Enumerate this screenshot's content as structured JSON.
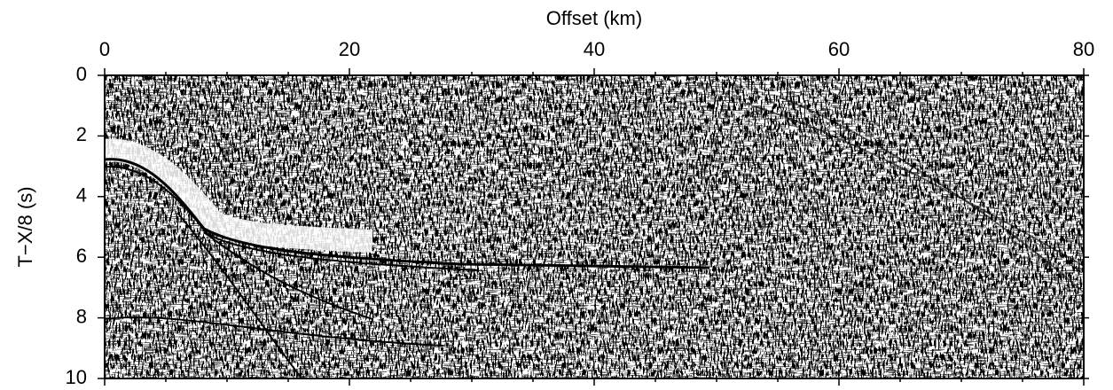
{
  "chart_data": {
    "type": "seismic",
    "x_label": "Offset (km)",
    "y_label": "T−X/8 (s)",
    "xlim": [
      0,
      80
    ],
    "xticks": [
      0,
      20,
      40,
      60,
      80
    ],
    "xminorticks": [
      5,
      10,
      15,
      25,
      30,
      35,
      45,
      50,
      55,
      65,
      70,
      75
    ],
    "ylim": [
      0,
      10
    ],
    "yticks": [
      0,
      2,
      4,
      6,
      8,
      10
    ],
    "y_inverted": true,
    "x_axis_position": "top"
  }
}
